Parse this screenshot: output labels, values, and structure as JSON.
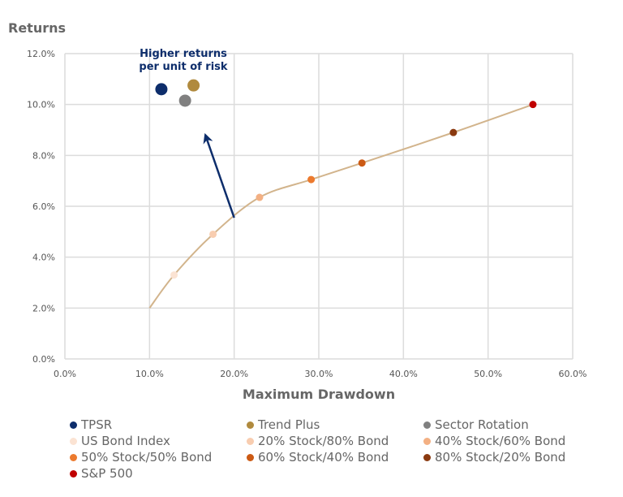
{
  "chart_data": {
    "type": "scatter",
    "title": "",
    "xlabel": "Maximum Drawdown",
    "ylabel": "Returns",
    "xlim": [
      0,
      60
    ],
    "ylim": [
      0,
      12
    ],
    "x_ticks": [
      "0.0%",
      "10.0%",
      "20.0%",
      "30.0%",
      "40.0%",
      "50.0%",
      "60.0%"
    ],
    "y_ticks": [
      "0.0%",
      "2.0%",
      "4.0%",
      "6.0%",
      "8.0%",
      "10.0%",
      "12.0%"
    ],
    "grid": true,
    "legend_position": "bottom",
    "annotation": {
      "lines": [
        "Higher returns",
        "per unit of risk"
      ],
      "arrow_from": [
        20.0,
        5.55
      ],
      "arrow_to": [
        16.6,
        8.8
      ]
    },
    "frontier_curve": {
      "start": [
        10.0,
        2.0
      ],
      "color": "#d2b48c"
    },
    "series": [
      {
        "name": "TPSR",
        "x": 11.4,
        "y": 10.6,
        "color": "#0d2d6b",
        "size": "large"
      },
      {
        "name": "Trend Plus",
        "x": 15.2,
        "y": 10.75,
        "color": "#b08a3e",
        "size": "large"
      },
      {
        "name": "Sector Rotation",
        "x": 14.2,
        "y": 10.15,
        "color": "#808080",
        "size": "large"
      },
      {
        "name": "US Bond Index",
        "x": 12.9,
        "y": 3.3,
        "color": "#fbe3d3",
        "size": "small"
      },
      {
        "name": "20% Stock/80% Bond",
        "x": 17.5,
        "y": 4.9,
        "color": "#f8cdb0",
        "size": "small"
      },
      {
        "name": "40% Stock/60% Bond",
        "x": 23.0,
        "y": 6.35,
        "color": "#f3b083",
        "size": "small"
      },
      {
        "name": "50% Stock/50% Bond",
        "x": 29.1,
        "y": 7.05,
        "color": "#ec7a2e",
        "size": "small"
      },
      {
        "name": "60% Stock/40% Bond",
        "x": 35.1,
        "y": 7.7,
        "color": "#cc5a14",
        "size": "small"
      },
      {
        "name": "80% Stock/20% Bond",
        "x": 45.9,
        "y": 8.9,
        "color": "#8a3a10",
        "size": "small"
      },
      {
        "name": "S&P 500",
        "x": 55.3,
        "y": 10.0,
        "color": "#c00000",
        "size": "small"
      }
    ]
  }
}
